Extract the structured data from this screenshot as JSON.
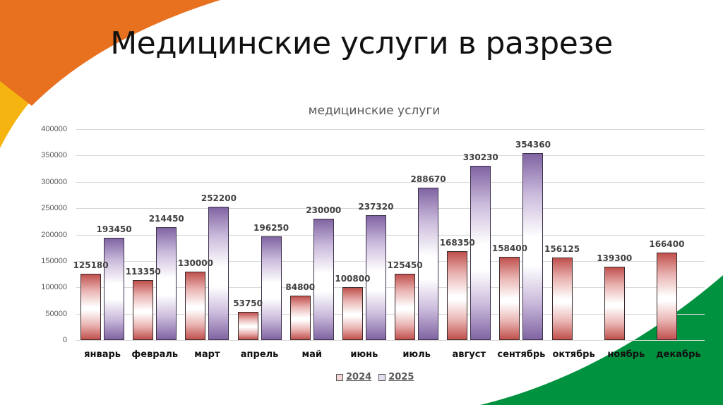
{
  "slide": {
    "title": "Медицинские услуги в разрезе",
    "colors": {
      "orange": "#e8711f",
      "yellow": "#f5b40f",
      "green": "#00923f"
    }
  },
  "chart_data": {
    "type": "bar",
    "title": "медицинские услуги",
    "xlabel": "",
    "ylabel": "",
    "ylim": [
      0,
      400000
    ],
    "yticks": [
      0,
      50000,
      100000,
      150000,
      200000,
      250000,
      300000,
      350000,
      400000
    ],
    "ytick_labels": [
      "0",
      "50000",
      "100000",
      "150000",
      "200000",
      "250000",
      "300000",
      "350000",
      "400000"
    ],
    "grid": true,
    "legend_position": "bottom",
    "categories": [
      "январь",
      "февраль",
      "март",
      "апрель",
      "май",
      "июнь",
      "июль",
      "август",
      "сентябрь",
      "октябрь",
      "ноябрь",
      "декабрь"
    ],
    "series": [
      {
        "name": "2024",
        "color": "#c0504d",
        "values": [
          125180,
          113350,
          130000,
          53750,
          84800,
          100800,
          125450,
          168350,
          158400,
          156125,
          139300,
          166400
        ]
      },
      {
        "name": "2025",
        "color": "#8064a2",
        "values": [
          193450,
          214450,
          252200,
          196250,
          230000,
          237320,
          288670,
          330230,
          354360,
          null,
          null,
          null
        ]
      }
    ]
  }
}
